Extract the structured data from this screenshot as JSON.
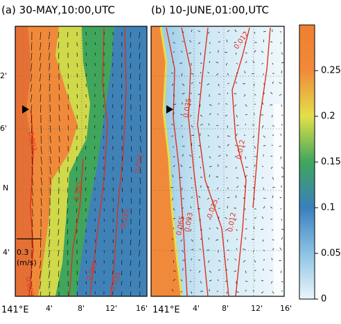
{
  "panels": [
    {
      "title": "(a) 30-MAY,10:00,UTC",
      "x_labels": [
        "141°E",
        "4'",
        "8'",
        "12'",
        "16'"
      ],
      "y_labels": [
        "2'",
        "6'",
        "N",
        "4'"
      ],
      "contour_labels": [
        "0.093",
        "0.093",
        "0.065",
        "0.035",
        "0.012",
        "0.035",
        "0.065"
      ],
      "scale": {
        "value": "0.3",
        "unit": "(m/s)"
      }
    },
    {
      "title": "(b) 10-JUNE,01:00,UTC",
      "x_labels": [
        "141°E",
        "4'",
        "8'",
        "12'",
        "16'"
      ],
      "contour_labels": [
        "0.035",
        "0.012",
        "0.012",
        "0.035",
        "0.012",
        "0.065",
        "0.093"
      ]
    }
  ],
  "colorbar": {
    "lim": [
      0,
      0.3
    ],
    "ticks": [
      0,
      0.05,
      0.1,
      0.15,
      0.2,
      0.25
    ],
    "colors": [
      "#eaf6fb",
      "#8cc3e3",
      "#3a7fbd",
      "#3fa65c",
      "#e3e04a",
      "#f08a3a",
      "#ef7f2f"
    ]
  }
}
